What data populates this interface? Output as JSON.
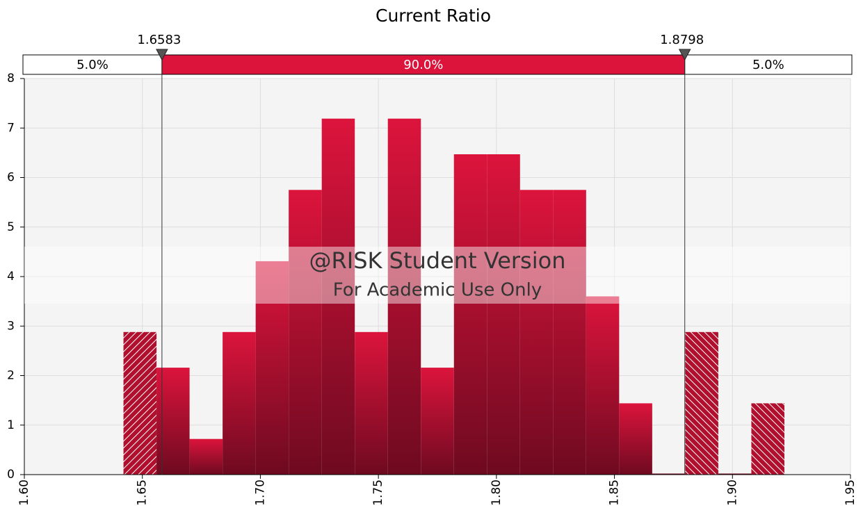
{
  "chart_data": {
    "type": "histogram",
    "title": "Current Ratio",
    "bins": [
      1.642,
      1.656,
      1.67,
      1.684,
      1.698,
      1.712,
      1.726,
      1.74,
      1.754,
      1.768,
      1.782,
      1.796,
      1.81,
      1.824,
      1.838,
      1.852,
      1.866,
      1.88,
      1.894,
      1.908,
      1.922
    ],
    "values": [
      2.88,
      2.16,
      0.72,
      2.88,
      4.31,
      5.75,
      7.19,
      2.88,
      7.19,
      2.16,
      6.47,
      6.47,
      5.75,
      5.75,
      3.6,
      1.44,
      0,
      2.88,
      0,
      1.44
    ],
    "color": "#dc143c",
    "xlim": [
      1.6,
      1.95
    ],
    "xticks": [
      {
        "value": 1.6,
        "label": "1.60"
      },
      {
        "value": 1.65,
        "label": "1.65"
      },
      {
        "value": 1.7,
        "label": "1.70"
      },
      {
        "value": 1.75,
        "label": "1.75"
      },
      {
        "value": 1.8,
        "label": "1.80"
      },
      {
        "value": 1.85,
        "label": "1.85"
      },
      {
        "value": 1.9,
        "label": "1.90"
      },
      {
        "value": 1.95,
        "label": "1.95"
      }
    ],
    "ylim": [
      0,
      8
    ],
    "yticks": [
      0,
      1,
      2,
      3,
      4,
      5,
      6,
      7,
      8
    ],
    "grid": true,
    "markers": [
      1.6583,
      1.8798
    ],
    "band_values": [
      5,
      90,
      5
    ],
    "band_labels": [
      "5.0%",
      "90.0%",
      "5.0%"
    ],
    "watermark": [
      "@RISK Student Version",
      "For Academic Use Only"
    ]
  }
}
